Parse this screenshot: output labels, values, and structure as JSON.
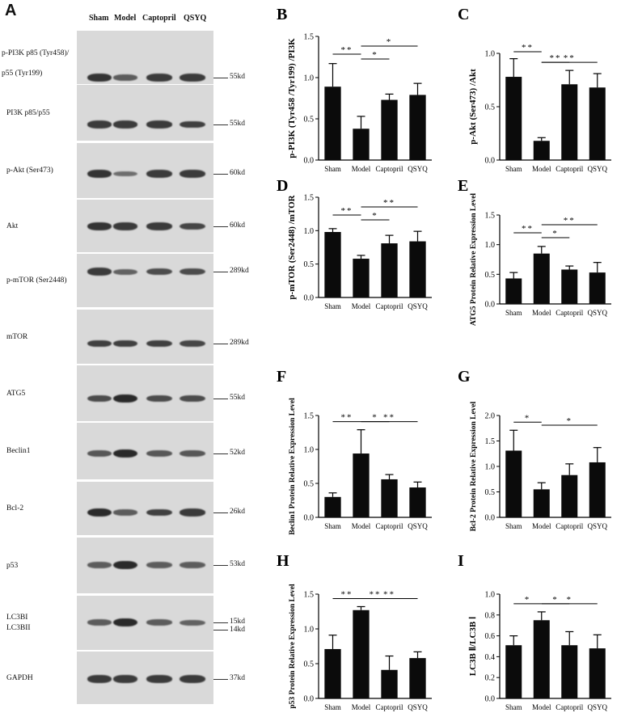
{
  "panel_A": {
    "letter": "A",
    "lanes": [
      "Sham",
      "Model",
      "Captopril",
      "QSYQ"
    ],
    "rows": [
      {
        "label": "p-PI3K p85 (Tyr458)/",
        "label2": "p55 (Tyr199)",
        "kd": "55kd",
        "intensity": [
          0.9,
          0.55,
          0.85,
          0.85
        ]
      },
      {
        "label": "PI3K p85/p55",
        "kd": "55kd",
        "intensity": [
          0.85,
          0.85,
          0.85,
          0.8
        ]
      },
      {
        "label": "p-Akt (Ser473)",
        "kd": "60kd",
        "intensity": [
          0.9,
          0.4,
          0.85,
          0.85
        ]
      },
      {
        "label": "Akt",
        "kd": "60kd",
        "intensity": [
          0.9,
          0.85,
          0.85,
          0.75
        ]
      },
      {
        "label": "p-mTOR (Ser2448)",
        "kd": "289kd",
        "intensity": [
          0.85,
          0.5,
          0.7,
          0.7
        ]
      },
      {
        "label": "mTOR",
        "kd": "289kd",
        "intensity": [
          0.8,
          0.8,
          0.8,
          0.75
        ]
      },
      {
        "label": "ATG5",
        "kd": "55kd",
        "intensity": [
          0.7,
          1.0,
          0.7,
          0.7
        ]
      },
      {
        "label": "Beclin1",
        "kd": "52kd",
        "intensity": [
          0.6,
          1.0,
          0.6,
          0.6
        ]
      },
      {
        "label": "Bcl-2",
        "kd": "26kd",
        "intensity": [
          1.0,
          0.55,
          0.8,
          0.85
        ]
      },
      {
        "label": "p53",
        "kd": "53kd",
        "intensity": [
          0.55,
          1.0,
          0.55,
          0.55
        ]
      },
      {
        "label": "LC3BI",
        "label2": "LC3BII",
        "kd": "15kd",
        "kd2": "14kd",
        "intensity": [
          0.55,
          1.0,
          0.55,
          0.5
        ]
      },
      {
        "label": "GAPDH",
        "kd": "37kd",
        "intensity": [
          0.85,
          0.85,
          0.85,
          0.85
        ]
      }
    ]
  },
  "chart_data": [
    {
      "letter": "B",
      "type": "bar",
      "categories": [
        "Sham",
        "Model",
        "Captopril",
        "QSYQ"
      ],
      "values": [
        0.89,
        0.38,
        0.73,
        0.79
      ],
      "errors": [
        0.28,
        0.15,
        0.07,
        0.14
      ],
      "ylabel": "p-PI3K (Tyr458 /Tyr199) /PI3K",
      "ylim": [
        0,
        1.5
      ],
      "yticks": [
        "0.0",
        "0.5",
        "1.0",
        "1.5"
      ],
      "sig": [
        {
          "from": 0,
          "to": 1,
          "label": "**"
        },
        {
          "from": 1,
          "to": 2,
          "label": "*"
        },
        {
          "from": 1,
          "to": 3,
          "label": "*"
        }
      ]
    },
    {
      "letter": "C",
      "type": "bar",
      "categories": [
        "Sham",
        "Model",
        "Captopril",
        "QSYQ"
      ],
      "values": [
        0.78,
        0.18,
        0.71,
        0.68
      ],
      "errors": [
        0.17,
        0.03,
        0.13,
        0.13
      ],
      "ylabel": "p-Akt (Ser473) /Akt",
      "ylim": [
        0,
        1.0
      ],
      "yticks": [
        "0.0",
        "0.5",
        "1.0"
      ],
      "sig": [
        {
          "from": 0,
          "to": 1,
          "label": "**"
        },
        {
          "from": 1,
          "to": 2,
          "label": "**"
        },
        {
          "from": 1,
          "to": 3,
          "label": "**"
        }
      ]
    },
    {
      "letter": "D",
      "type": "bar",
      "categories": [
        "Sham",
        "Model",
        "Captopril",
        "QSYQ"
      ],
      "values": [
        0.98,
        0.58,
        0.81,
        0.84
      ],
      "errors": [
        0.05,
        0.05,
        0.12,
        0.15
      ],
      "ylabel": "p-mTOR (Ser2448) /mTOR",
      "ylim": [
        0,
        1.5
      ],
      "yticks": [
        "0.0",
        "0.5",
        "1.0",
        "1.5"
      ],
      "sig": [
        {
          "from": 0,
          "to": 1,
          "label": "**"
        },
        {
          "from": 1,
          "to": 2,
          "label": "*"
        },
        {
          "from": 1,
          "to": 3,
          "label": "**"
        }
      ]
    },
    {
      "letter": "E",
      "type": "bar",
      "categories": [
        "Sham",
        "Model",
        "Captopril",
        "QSYQ"
      ],
      "values": [
        0.43,
        0.85,
        0.58,
        0.53
      ],
      "errors": [
        0.1,
        0.12,
        0.06,
        0.17
      ],
      "ylabel": "ATG5 Protein Relative Expression Level",
      "ylim": [
        0,
        1.5
      ],
      "yticks": [
        "0.0",
        "0.5",
        "1.0",
        "1.5"
      ],
      "sig": [
        {
          "from": 0,
          "to": 1,
          "label": "**"
        },
        {
          "from": 1,
          "to": 2,
          "label": "*"
        },
        {
          "from": 1,
          "to": 3,
          "label": "**"
        }
      ]
    },
    {
      "letter": "F",
      "type": "bar",
      "categories": [
        "Sham",
        "Model",
        "Captopril",
        "QSYQ"
      ],
      "values": [
        0.3,
        0.94,
        0.56,
        0.44
      ],
      "errors": [
        0.06,
        0.35,
        0.07,
        0.08
      ],
      "ylabel": "Beclin1 Protein Relative Expression Level",
      "ylim": [
        0,
        1.5
      ],
      "yticks": [
        "0.0",
        "0.5",
        "1.0",
        "1.5"
      ],
      "sig": [
        {
          "from": 0,
          "to": 1,
          "label": "**"
        },
        {
          "from": 1,
          "to": 2,
          "label": "*"
        },
        {
          "from": 1,
          "to": 3,
          "label": "**"
        }
      ]
    },
    {
      "letter": "G",
      "type": "bar",
      "categories": [
        "Sham",
        "Model",
        "Captopril",
        "QSYQ"
      ],
      "values": [
        1.31,
        0.55,
        0.83,
        1.08
      ],
      "errors": [
        0.4,
        0.13,
        0.22,
        0.29
      ],
      "ylabel": "Bcl-2 Protein Relative Expression Level",
      "ylim": [
        0,
        2.0
      ],
      "yticks": [
        "0.0",
        "0.5",
        "1.0",
        "1.5",
        "2.0"
      ],
      "sig": [
        {
          "from": 0,
          "to": 1,
          "label": "*"
        },
        {
          "from": 1,
          "to": 3,
          "label": "*"
        }
      ]
    },
    {
      "letter": "H",
      "type": "bar",
      "categories": [
        "Sham",
        "Model",
        "Captopril",
        "QSYQ"
      ],
      "values": [
        0.71,
        1.27,
        0.41,
        0.58
      ],
      "errors": [
        0.2,
        0.05,
        0.2,
        0.09
      ],
      "ylabel": "p53 Protein Relative Expression Level",
      "ylim": [
        0,
        1.5
      ],
      "yticks": [
        "0.0",
        "0.5",
        "1.0",
        "1.5"
      ],
      "sig": [
        {
          "from": 0,
          "to": 1,
          "label": "**"
        },
        {
          "from": 1,
          "to": 2,
          "label": "**"
        },
        {
          "from": 1,
          "to": 3,
          "label": "**"
        }
      ]
    },
    {
      "letter": "I",
      "type": "bar",
      "categories": [
        "Sham",
        "Model",
        "Captopril",
        "QSYQ"
      ],
      "values": [
        0.51,
        0.75,
        0.51,
        0.48
      ],
      "errors": [
        0.09,
        0.08,
        0.13,
        0.13
      ],
      "ylabel": "LC3B Ⅱ/LC3B Ⅰ",
      "ylim": [
        0,
        1.0
      ],
      "yticks": [
        "0.0",
        "0.2",
        "0.4",
        "0.6",
        "0.8",
        "1.0"
      ],
      "sig": [
        {
          "from": 0,
          "to": 1,
          "label": "*"
        },
        {
          "from": 1,
          "to": 2,
          "label": "*"
        },
        {
          "from": 1,
          "to": 3,
          "label": "*"
        }
      ]
    }
  ]
}
